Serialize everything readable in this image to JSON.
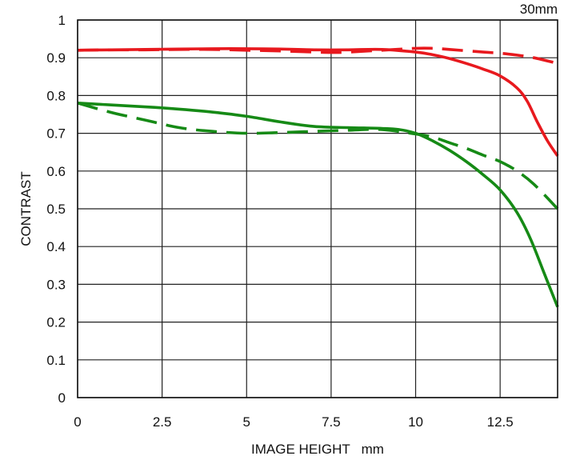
{
  "chart_data": {
    "type": "line",
    "title": "30mm",
    "xlabel": "IMAGE HEIGHT   mm",
    "ylabel": "CONTRAST",
    "xlim": [
      0,
      14.2
    ],
    "ylim": [
      0,
      1
    ],
    "xticks": [
      0,
      2.5,
      5,
      7.5,
      10,
      12.5
    ],
    "xtick_labels": [
      "0",
      "2.5",
      "5",
      "7.5",
      "10",
      "12.5"
    ],
    "yticks": [
      0,
      0.1,
      0.2,
      0.3,
      0.4,
      0.5,
      0.6,
      0.7,
      0.8,
      0.9,
      1
    ],
    "ytick_labels": [
      "0",
      "0.1",
      "0.2",
      "0.3",
      "0.4",
      "0.5",
      "0.6",
      "0.7",
      "0.8",
      "0.9",
      "1"
    ],
    "grid": true,
    "series": [
      {
        "color": "#e8191e",
        "dash": "solid",
        "x": [
          0,
          1,
          2,
          3,
          4,
          5,
          6,
          7,
          8,
          9,
          10,
          10.5,
          11,
          11.5,
          12,
          12.5,
          13,
          13.3,
          13.6,
          13.9,
          14.2
        ],
        "y": [
          0.92,
          0.921,
          0.922,
          0.923,
          0.924,
          0.924,
          0.923,
          0.921,
          0.921,
          0.922,
          0.915,
          0.908,
          0.898,
          0.885,
          0.87,
          0.852,
          0.82,
          0.785,
          0.73,
          0.68,
          0.64
        ]
      },
      {
        "color": "#e8191e",
        "dash": "dashed",
        "x": [
          0,
          1,
          2,
          3,
          4,
          5,
          6,
          7,
          7.5,
          8,
          9,
          10,
          10.5,
          11,
          12,
          12.5,
          13,
          13.5,
          14.2
        ],
        "y": [
          0.92,
          0.921,
          0.921,
          0.922,
          0.922,
          0.92,
          0.918,
          0.915,
          0.914,
          0.915,
          0.92,
          0.925,
          0.925,
          0.922,
          0.915,
          0.912,
          0.907,
          0.9,
          0.885
        ]
      },
      {
        "color": "#168a16",
        "dash": "solid",
        "x": [
          0,
          1,
          2,
          3,
          4,
          5,
          6,
          7,
          8,
          9,
          9.5,
          10,
          10.5,
          11,
          11.5,
          12,
          12.5,
          13,
          13.4,
          13.8,
          14.2
        ],
        "y": [
          0.78,
          0.775,
          0.77,
          0.764,
          0.756,
          0.745,
          0.73,
          0.718,
          0.715,
          0.713,
          0.71,
          0.7,
          0.68,
          0.655,
          0.625,
          0.59,
          0.55,
          0.49,
          0.42,
          0.33,
          0.24
        ]
      },
      {
        "color": "#168a16",
        "dash": "dashed",
        "x": [
          0,
          1,
          2,
          3,
          4,
          5,
          6,
          7,
          8,
          9,
          10,
          10.5,
          11,
          11.5,
          12,
          12.5,
          13,
          13.5,
          14.2
        ],
        "y": [
          0.78,
          0.755,
          0.735,
          0.715,
          0.705,
          0.7,
          0.702,
          0.705,
          0.708,
          0.71,
          0.698,
          0.69,
          0.675,
          0.66,
          0.642,
          0.625,
          0.6,
          0.565,
          0.5
        ]
      }
    ]
  }
}
